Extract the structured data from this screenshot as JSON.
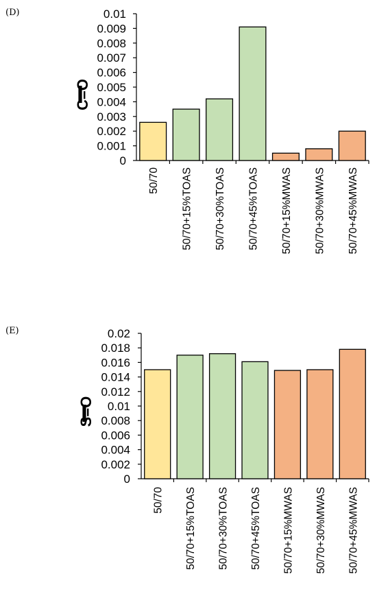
{
  "chart_data": [
    {
      "type": "bar",
      "panel_label": "(D)",
      "ylabel_main": "I",
      "ylabel_sub": "C=O",
      "categories": [
        "50/70",
        "50/70+15%TOAS",
        "50/70+30%TOAS",
        "50/70+45%TOAS",
        "50/70+15%MWAS",
        "50/70+30%MWAS",
        "50/70+45%MWAS"
      ],
      "values": [
        0.0026,
        0.0035,
        0.0042,
        0.0091,
        0.0005,
        0.0008,
        0.002
      ],
      "bar_colors": [
        "#FFE699",
        "#C5E0B4",
        "#C5E0B4",
        "#C5E0B4",
        "#F4B183",
        "#F4B183",
        "#F4B183"
      ],
      "ylim": [
        0,
        0.01
      ],
      "yticks": [
        "0",
        "0.001",
        "0.002",
        "0.003",
        "0.004",
        "0.005",
        "0.006",
        "0.007",
        "0.008",
        "0.009",
        "0.01"
      ],
      "grid": false
    },
    {
      "type": "bar",
      "panel_label": "(E)",
      "ylabel_main": "I",
      "ylabel_sub": "S=O",
      "categories": [
        "50/70",
        "50/70+15%TOAS",
        "50/70+30%TOAS",
        "50/70+45%TOAS",
        "50/70+15%MWAS",
        "50/70+30%MWAS",
        "50/70+45%MWAS"
      ],
      "values": [
        0.015,
        0.017,
        0.0172,
        0.0161,
        0.0149,
        0.015,
        0.0178
      ],
      "bar_colors": [
        "#FFE699",
        "#C5E0B4",
        "#C5E0B4",
        "#C5E0B4",
        "#F4B183",
        "#F4B183",
        "#F4B183"
      ],
      "ylim": [
        0,
        0.02
      ],
      "yticks": [
        "0",
        "0.002",
        "0.004",
        "0.006",
        "0.008",
        "0.01",
        "0.012",
        "0.014",
        "0.016",
        "0.018",
        "0.02"
      ],
      "grid": false
    }
  ]
}
